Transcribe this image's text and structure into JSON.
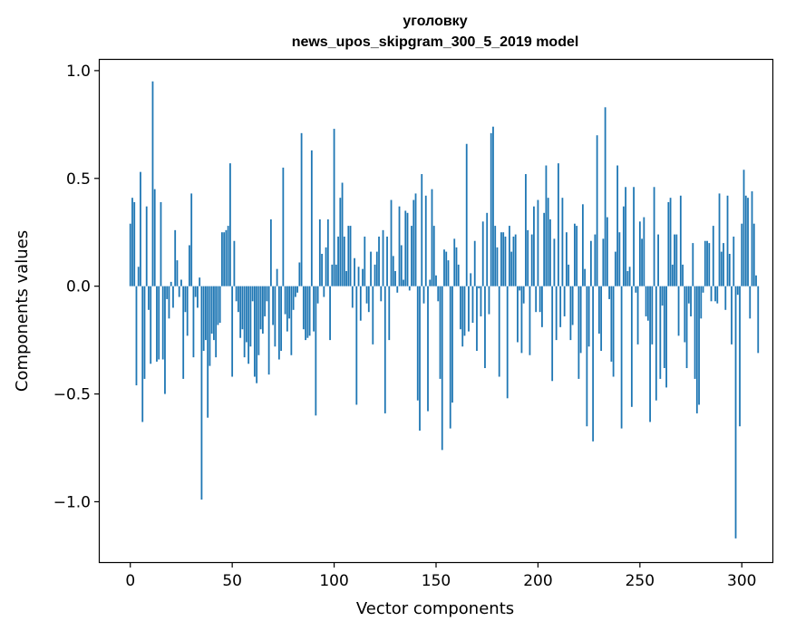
{
  "chart_data": {
    "type": "bar",
    "title_line1": "уголовку",
    "title_line2": "news_upos_skipgram_300_5_2019 model",
    "xlabel": "Vector components",
    "ylabel": "Components values",
    "xlim": [
      -15,
      315
    ],
    "ylim": [
      -1.28,
      1.05
    ],
    "xticks": [
      0,
      50,
      100,
      150,
      200,
      250,
      300
    ],
    "xtick_labels": [
      "0",
      "50",
      "100",
      "150",
      "200",
      "250",
      "300"
    ],
    "yticks": [
      -1.0,
      -0.5,
      0.0,
      0.5,
      1.0
    ],
    "ytick_labels": [
      "−1.0",
      "−0.5",
      "0.0",
      "0.5",
      "1.0"
    ],
    "bar_color": "#1f77b4",
    "grid": false,
    "x_start": 0,
    "values": [
      0.29,
      0.41,
      0.39,
      -0.46,
      0.09,
      0.53,
      -0.63,
      -0.43,
      0.37,
      -0.11,
      -0.36,
      0.95,
      0.45,
      -0.35,
      -0.34,
      0.39,
      -0.34,
      -0.5,
      -0.06,
      -0.15,
      0.02,
      -0.1,
      0.26,
      0.12,
      -0.05,
      0.03,
      -0.43,
      -0.12,
      -0.23,
      0.19,
      0.43,
      -0.33,
      -0.05,
      -0.1,
      0.04,
      -0.99,
      -0.3,
      -0.25,
      -0.61,
      -0.37,
      -0.22,
      -0.25,
      -0.33,
      -0.18,
      -0.17,
      0.25,
      0.25,
      0.26,
      0.28,
      0.57,
      -0.42,
      0.21,
      -0.07,
      -0.12,
      -0.24,
      -0.2,
      -0.33,
      -0.26,
      -0.36,
      -0.28,
      -0.07,
      -0.42,
      -0.45,
      -0.32,
      -0.2,
      -0.22,
      -0.14,
      -0.07,
      -0.41,
      0.31,
      -0.18,
      -0.28,
      0.08,
      -0.34,
      -0.3,
      0.55,
      -0.13,
      -0.21,
      -0.15,
      -0.32,
      -0.11,
      -0.05,
      -0.03,
      0.11,
      0.71,
      -0.2,
      -0.25,
      -0.24,
      -0.23,
      0.63,
      -0.21,
      -0.6,
      -0.08,
      0.31,
      0.15,
      -0.05,
      0.18,
      0.31,
      -0.25,
      0.1,
      0.73,
      0.1,
      0.23,
      0.41,
      0.48,
      0.23,
      0.07,
      0.28,
      0.28,
      -0.1,
      0.13,
      -0.55,
      0.09,
      -0.16,
      0.08,
      0.23,
      -0.08,
      -0.12,
      0.16,
      -0.27,
      0.1,
      0.16,
      0.23,
      -0.07,
      0.26,
      -0.59,
      0.23,
      -0.25,
      0.4,
      0.14,
      0.07,
      -0.03,
      0.37,
      0.19,
      0.03,
      0.35,
      0.34,
      -0.02,
      0.28,
      0.4,
      0.43,
      -0.53,
      -0.67,
      0.52,
      -0.08,
      0.42,
      -0.58,
      0.03,
      0.45,
      0.28,
      0.05,
      -0.07,
      -0.43,
      -0.76,
      0.17,
      0.16,
      0.12,
      -0.66,
      -0.54,
      0.22,
      0.18,
      0.1,
      -0.2,
      -0.28,
      -0.23,
      0.66,
      -0.21,
      0.06,
      -0.17,
      0.21,
      -0.3,
      -0.01,
      -0.14,
      0.3,
      -0.38,
      0.34,
      -0.13,
      0.71,
      0.74,
      0.28,
      0.18,
      -0.42,
      0.25,
      0.25,
      0.23,
      -0.52,
      0.28,
      0.16,
      0.23,
      0.24,
      -0.26,
      -0.02,
      -0.31,
      -0.08,
      0.52,
      0.26,
      -0.32,
      0.24,
      0.37,
      -0.12,
      0.4,
      -0.12,
      -0.19,
      0.34,
      0.56,
      0.41,
      0.31,
      -0.44,
      0.22,
      -0.25,
      0.57,
      -0.19,
      0.41,
      -0.14,
      0.25,
      0.1,
      -0.25,
      -0.18,
      0.29,
      0.28,
      -0.43,
      -0.31,
      0.38,
      0.08,
      -0.65,
      -0.28,
      0.21,
      -0.72,
      0.24,
      0.7,
      -0.22,
      -0.3,
      0.22,
      0.83,
      0.32,
      -0.06,
      -0.35,
      -0.42,
      0.16,
      0.56,
      0.25,
      -0.66,
      0.37,
      0.46,
      0.07,
      0.09,
      -0.56,
      0.46,
      -0.03,
      -0.27,
      0.3,
      0.22,
      0.32,
      -0.14,
      -0.16,
      -0.63,
      -0.27,
      0.46,
      -0.53,
      0.24,
      -0.43,
      -0.09,
      -0.38,
      -0.47,
      0.39,
      0.41,
      0.1,
      0.24,
      0.24,
      -0.23,
      0.42,
      0.1,
      -0.26,
      -0.38,
      -0.08,
      -0.14,
      0.2,
      -0.43,
      -0.59,
      -0.55,
      -0.15,
      -0.03,
      0.21,
      0.21,
      0.2,
      -0.07,
      0.28,
      -0.07,
      -0.08,
      0.43,
      0.16,
      0.2,
      -0.11,
      0.42,
      0.15,
      -0.27,
      0.23,
      -1.17,
      -0.04,
      -0.65,
      0.29,
      0.54,
      0.42,
      0.41,
      -0.15,
      0.44,
      0.29,
      0.05,
      -0.31
    ]
  }
}
